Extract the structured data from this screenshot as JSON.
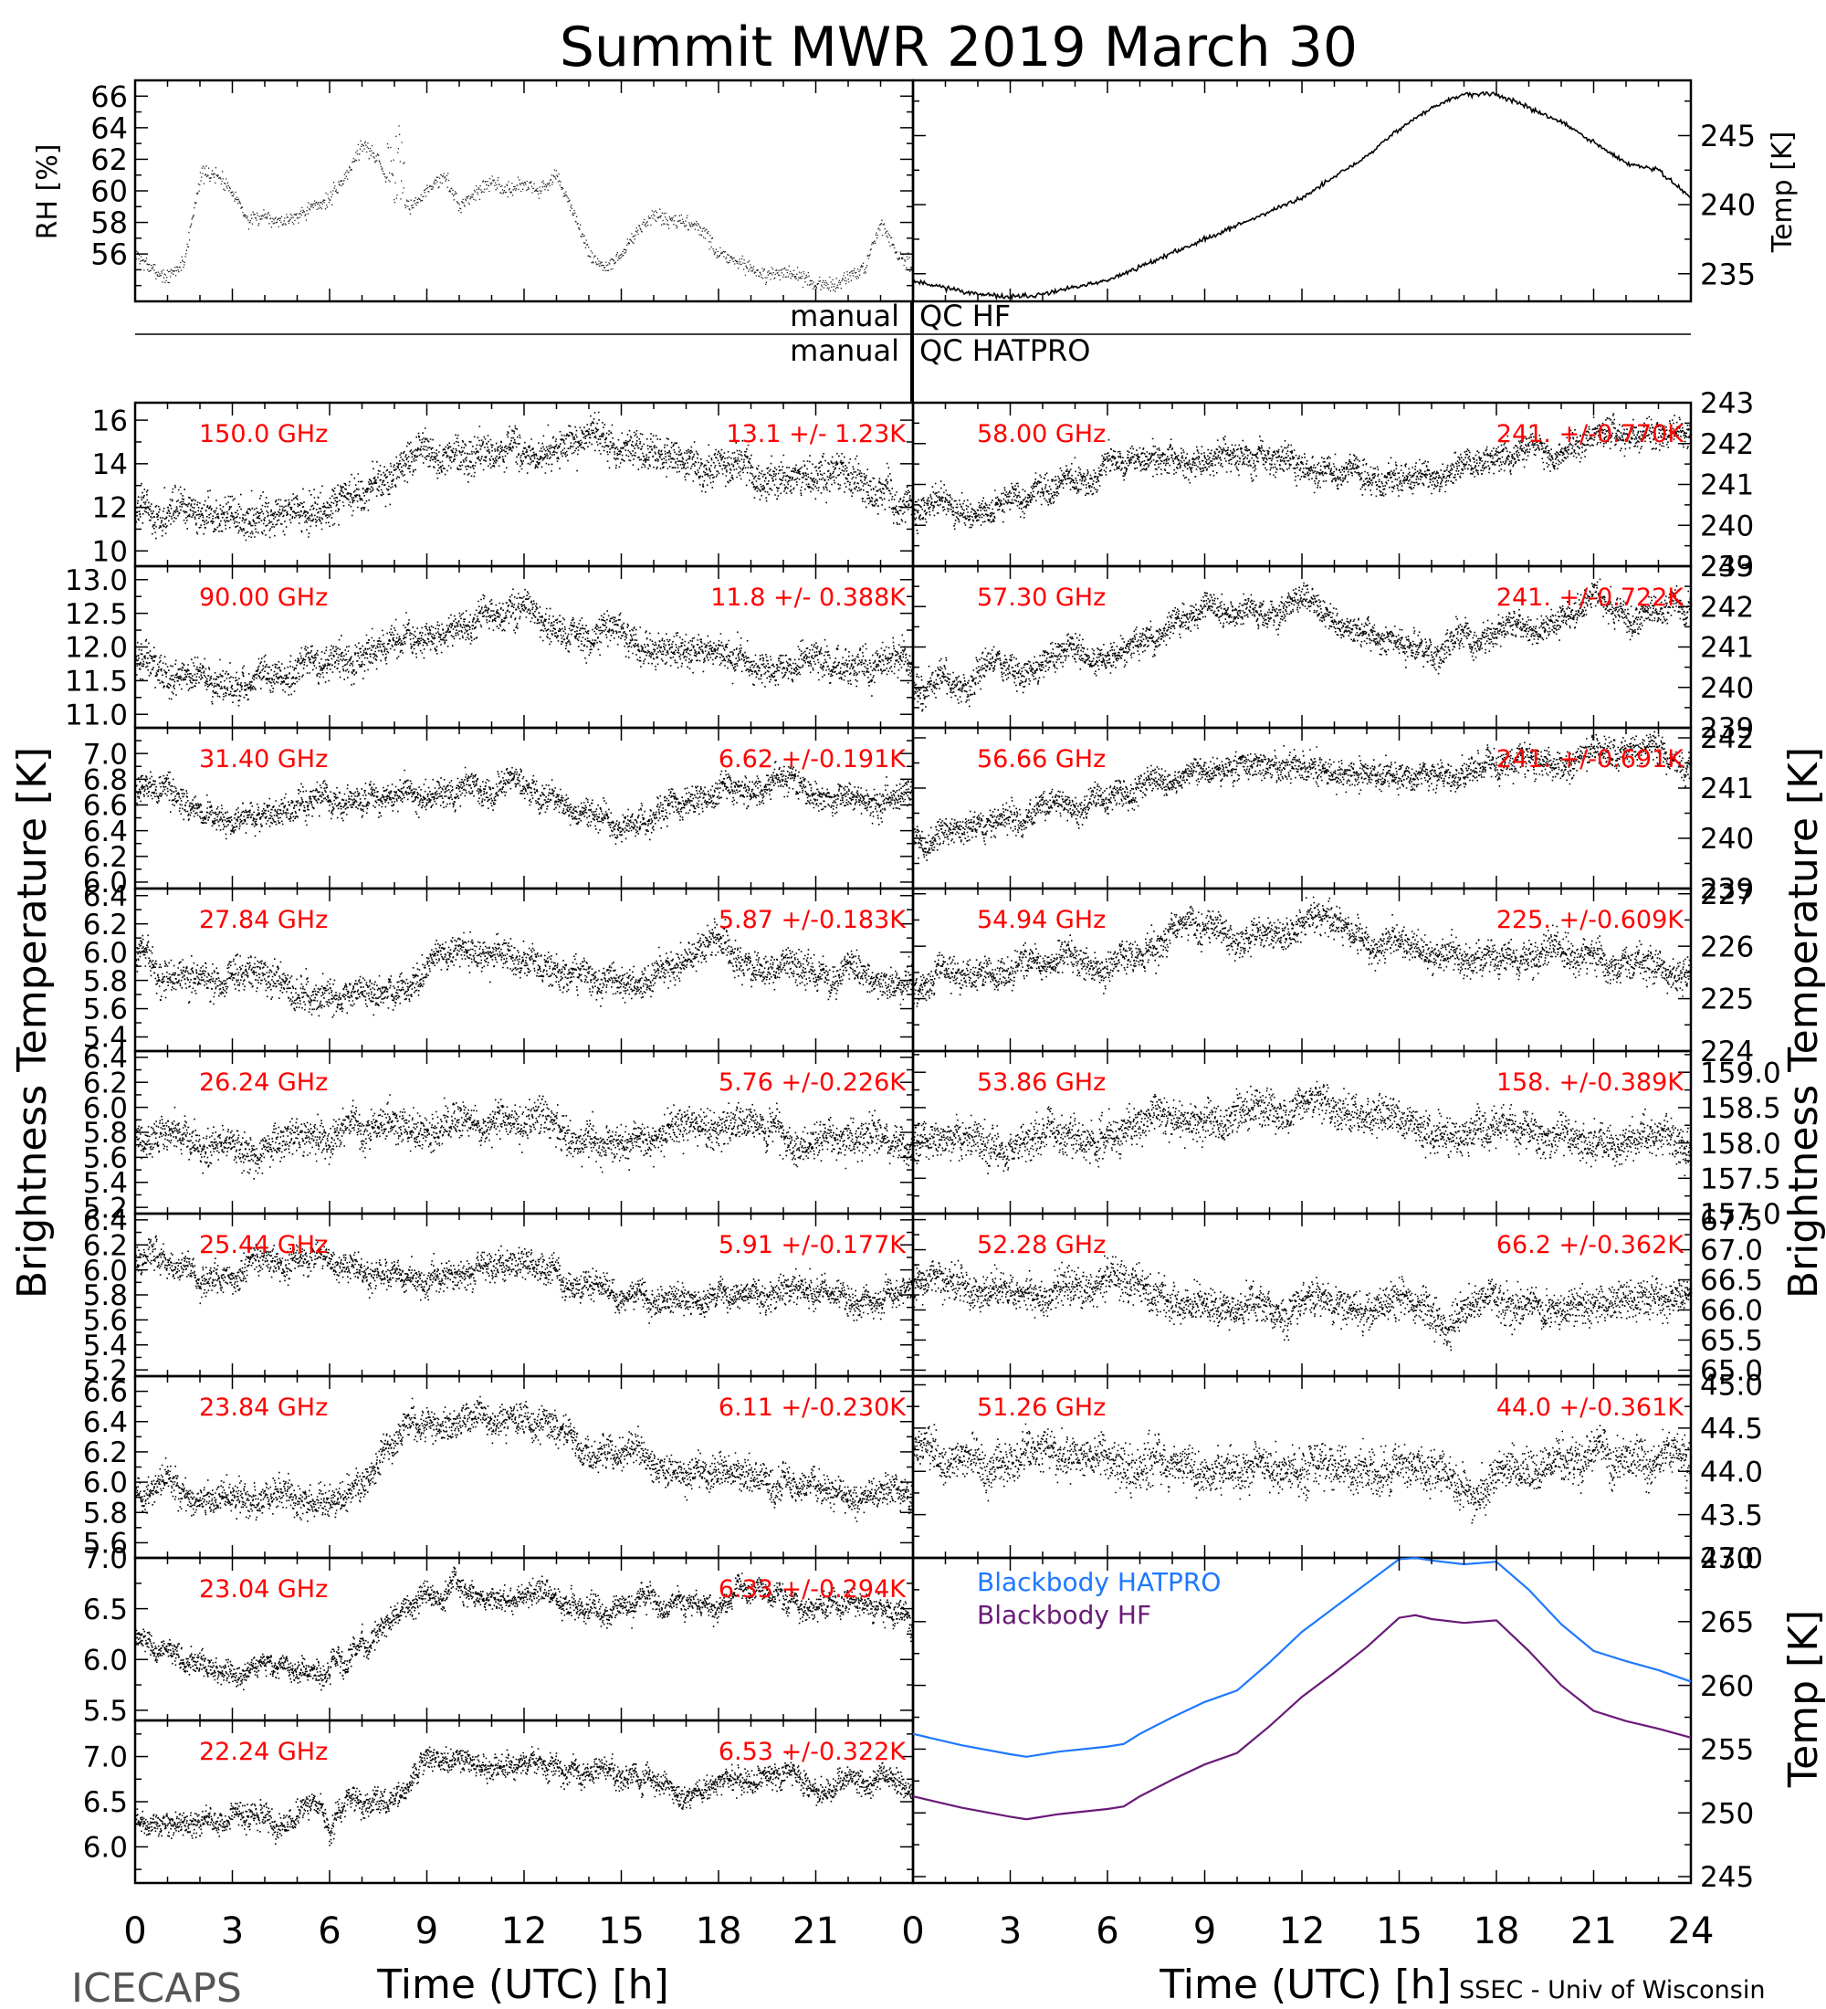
{
  "header": {
    "title": "Summit MWR 2019 March 30",
    "xlabel_left": "Time (UTC) [h]",
    "xlabel_right": "Time (UTC) [h]",
    "credit_left": "ICECAPS",
    "credit_right": "SSEC - Univ of Wisconsin",
    "ylabel_left": "Brightness Temperature [K]",
    "ylabel_right": "Brightness Temperature [K]",
    "ylabel_bb": "Temp [K]",
    "manual_label_1": "manual",
    "qc_label_1": "QC HF",
    "manual_label_2": "manual",
    "qc_label_2": "QC HATPRO"
  },
  "colors": {
    "trace": "#000000",
    "annotation": "#ff0000",
    "bb_hatpro": "#1e78ff",
    "bb_hf": "#6a1a78",
    "background": "#ffffff"
  },
  "chart_data": [
    {
      "type": "scatter",
      "id": "rh",
      "ylabel": "RH [%]",
      "ylim": [
        53,
        67
      ],
      "yticks": [
        56,
        58,
        60,
        62,
        64,
        66
      ],
      "xlim": [
        0,
        24
      ],
      "x": [
        0,
        0.5,
        1,
        1.5,
        2,
        2.5,
        3,
        3.5,
        4,
        4.5,
        5,
        5.5,
        6,
        6.5,
        7,
        7.5,
        8,
        8.5,
        9,
        9.5,
        10,
        10.5,
        11,
        11.5,
        12,
        12.5,
        13,
        13.5,
        14,
        14.5,
        15,
        15.5,
        16,
        16.5,
        17,
        17.5,
        18,
        18.5,
        19,
        19.5,
        20,
        20.5,
        21,
        21.5,
        22,
        22.5,
        23,
        23.5,
        24
      ],
      "values": [
        56,
        55,
        54.5,
        55.5,
        61,
        61,
        60,
        58,
        58.5,
        58,
        58.5,
        59,
        59.5,
        61,
        63,
        62,
        59,
        59,
        60,
        61,
        59,
        60,
        60.5,
        60,
        60.5,
        60,
        61,
        58.5,
        56,
        55,
        56,
        57.5,
        58.5,
        58,
        58,
        57.5,
        56,
        55.5,
        55,
        54.5,
        55,
        54.5,
        54,
        54,
        54.5,
        55,
        58,
        56,
        55
      ]
    },
    {
      "type": "line",
      "id": "air-temp",
      "ylabel": "Temp [K]",
      "ylim": [
        233,
        249
      ],
      "yticks": [
        235,
        240,
        245
      ],
      "xlim": [
        0,
        24
      ],
      "x": [
        0,
        1,
        2,
        3,
        4,
        5,
        6,
        7,
        8,
        9,
        10,
        11,
        12,
        13,
        14,
        15,
        16,
        17,
        18,
        19,
        20,
        21,
        22,
        23,
        24
      ],
      "values": [
        234.5,
        234,
        233.5,
        233.3,
        233.5,
        234,
        234.5,
        235.5,
        236.5,
        237.5,
        238.5,
        239.5,
        240.5,
        242,
        243.5,
        245.5,
        247,
        248,
        248,
        247,
        246,
        244.5,
        243,
        242.5,
        240.5
      ]
    },
    {
      "type": "scatter",
      "id": "ch-150",
      "freq_label": "150.0 GHz",
      "stat_label": "13.1 +/- 1.23K",
      "ylim": [
        9.3,
        16.8
      ],
      "yticks": [
        10,
        12,
        14,
        16
      ],
      "xlim": [
        0,
        24
      ],
      "x": [
        0,
        3,
        6,
        9,
        12,
        15,
        18,
        21,
        24
      ],
      "values": [
        12,
        11.5,
        12,
        14.5,
        15,
        14.5,
        13.5,
        13,
        12.5
      ]
    },
    {
      "type": "scatter",
      "id": "ch-90",
      "freq_label": "90.00 GHz",
      "stat_label": "11.8 +/- 0.388K",
      "ylim": [
        10.8,
        13.2
      ],
      "yticks": [
        11.0,
        11.5,
        12.0,
        12.5,
        13.0
      ],
      "xlim": [
        0,
        24
      ],
      "x": [
        0,
        3,
        6,
        9,
        12,
        15,
        18,
        21,
        24
      ],
      "values": [
        11.8,
        11.5,
        11.7,
        12.2,
        12.3,
        12.1,
        11.8,
        11.7,
        11.8
      ]
    },
    {
      "type": "scatter",
      "id": "ch-31",
      "freq_label": "31.40 GHz",
      "stat_label": "6.62 +/-0.191K",
      "ylim": [
        5.95,
        7.2
      ],
      "yticks": [
        6.0,
        6.2,
        6.4,
        6.6,
        6.8,
        7.0
      ],
      "xlim": [
        0,
        24
      ],
      "x": [
        0,
        3,
        6,
        9,
        12,
        15,
        18,
        21,
        24
      ],
      "values": [
        6.7,
        6.5,
        6.55,
        6.65,
        6.7,
        6.45,
        6.7,
        6.65,
        6.7
      ]
    },
    {
      "type": "scatter",
      "id": "ch-27",
      "freq_label": "27.84 GHz",
      "stat_label": "5.87 +/-0.183K",
      "ylim": [
        5.3,
        6.45
      ],
      "yticks": [
        5.4,
        5.6,
        5.8,
        6.0,
        6.2,
        6.4
      ],
      "xlim": [
        0,
        24
      ],
      "x": [
        0,
        3,
        6,
        9,
        12,
        15,
        18,
        21,
        24
      ],
      "values": [
        5.95,
        5.8,
        5.75,
        5.9,
        6.0,
        5.75,
        5.95,
        5.85,
        5.85
      ]
    },
    {
      "type": "scatter",
      "id": "ch-26",
      "freq_label": "26.24 GHz",
      "stat_label": "5.76 +/-0.226K",
      "ylim": [
        5.15,
        6.45
      ],
      "yticks": [
        5.2,
        5.4,
        5.6,
        5.8,
        6.0,
        6.2,
        6.4
      ],
      "xlim": [
        0,
        24
      ],
      "x": [
        0,
        3,
        6,
        9,
        12,
        15,
        18,
        21,
        24
      ],
      "values": [
        5.8,
        5.7,
        5.75,
        5.85,
        5.9,
        5.7,
        5.85,
        5.75,
        5.75
      ]
    },
    {
      "type": "scatter",
      "id": "ch-25",
      "freq_label": "25.44 GHz",
      "stat_label": "5.91 +/-0.177K",
      "ylim": [
        5.15,
        6.45
      ],
      "yticks": [
        5.2,
        5.4,
        5.6,
        5.8,
        6.0,
        6.2,
        6.4
      ],
      "xlim": [
        0,
        24
      ],
      "x": [
        0,
        3,
        6,
        9,
        12,
        15,
        18,
        21,
        24
      ],
      "values": [
        6.1,
        5.95,
        6.1,
        5.9,
        6.0,
        5.8,
        5.8,
        5.85,
        5.8
      ]
    },
    {
      "type": "scatter",
      "id": "ch-23-84",
      "freq_label": "23.84 GHz",
      "stat_label": "6.11 +/-0.230K",
      "ylim": [
        5.5,
        6.7
      ],
      "yticks": [
        5.6,
        5.8,
        6.0,
        6.2,
        6.4,
        6.6
      ],
      "xlim": [
        0,
        24
      ],
      "x": [
        0,
        3,
        6,
        9,
        12,
        15,
        18,
        21,
        24
      ],
      "values": [
        6.0,
        5.9,
        5.9,
        6.35,
        6.45,
        6.15,
        6.1,
        6.0,
        5.9
      ]
    },
    {
      "type": "scatter",
      "id": "ch-23-04",
      "freq_label": "23.04 GHz",
      "stat_label": "6.33 +/-0.294K",
      "ylim": [
        5.4,
        7.0
      ],
      "yticks": [
        5.5,
        6.0,
        6.5,
        7.0
      ],
      "xlim": [
        0,
        24
      ],
      "x": [
        0,
        3,
        6,
        9,
        12,
        15,
        18,
        21,
        24
      ],
      "values": [
        6.2,
        5.9,
        6.0,
        6.6,
        6.6,
        6.45,
        6.55,
        6.55,
        6.3
      ]
    },
    {
      "type": "scatter",
      "id": "ch-22",
      "freq_label": "22.24 GHz",
      "stat_label": "6.53 +/-0.322K",
      "ylim": [
        5.6,
        7.4
      ],
      "yticks": [
        6.0,
        6.5,
        7.0
      ],
      "xlim": [
        0,
        24
      ],
      "x": [
        0,
        3,
        6,
        9,
        12,
        15,
        18,
        21,
        24
      ],
      "values": [
        6.3,
        6.3,
        6.4,
        6.9,
        6.9,
        6.75,
        6.75,
        6.7,
        6.6
      ]
    },
    {
      "type": "scatter",
      "id": "ch-58",
      "freq_label": "58.00 GHz",
      "stat_label": "241. +/-0.770K",
      "ylim": [
        239,
        243
      ],
      "yticks": [
        239,
        240,
        241,
        242,
        243
      ],
      "xlim": [
        0,
        24
      ],
      "x": [
        0,
        3,
        6,
        9,
        12,
        15,
        18,
        21,
        24
      ],
      "values": [
        240.2,
        240.6,
        241.2,
        241.8,
        241.7,
        241.2,
        241.4,
        242,
        242
      ]
    },
    {
      "type": "scatter",
      "id": "ch-57",
      "freq_label": "57.30 GHz",
      "stat_label": "241. +/-0.722K",
      "ylim": [
        239,
        243
      ],
      "yticks": [
        239,
        240,
        241,
        242,
        243
      ],
      "xlim": [
        0,
        24
      ],
      "x": [
        0,
        3,
        6,
        9,
        12,
        15,
        18,
        21,
        24
      ],
      "values": [
        240,
        240.5,
        241,
        241.7,
        242,
        241.3,
        241.3,
        241.9,
        242.1
      ]
    },
    {
      "type": "scatter",
      "id": "ch-56",
      "freq_label": "56.66 GHz",
      "stat_label": "241. +/-0.691K",
      "ylim": [
        239,
        242.2
      ],
      "yticks": [
        239,
        240,
        241,
        242
      ],
      "xlim": [
        0,
        24
      ],
      "x": [
        0,
        3,
        6,
        9,
        12,
        15,
        18,
        21,
        24
      ],
      "values": [
        240,
        240.4,
        240.9,
        241.4,
        241.5,
        241.3,
        241.3,
        241.6,
        241.6
      ]
    },
    {
      "type": "scatter",
      "id": "ch-54",
      "freq_label": "54.94 GHz",
      "stat_label": "225. +/-0.609K",
      "ylim": [
        224,
        227.1
      ],
      "yticks": [
        224,
        225,
        226,
        227
      ],
      "xlim": [
        0,
        24
      ],
      "x": [
        0,
        3,
        6,
        9,
        12,
        15,
        18,
        21,
        24
      ],
      "values": [
        225.2,
        225.5,
        225.9,
        226.3,
        226.4,
        226.1,
        225.9,
        225.9,
        225.6
      ]
    },
    {
      "type": "scatter",
      "id": "ch-53",
      "freq_label": "53.86 GHz",
      "stat_label": "158. +/-0.389K",
      "ylim": [
        157.0,
        159.3
      ],
      "yticks": [
        157.0,
        157.5,
        158.0,
        158.5,
        159.0
      ],
      "xlim": [
        0,
        24
      ],
      "x": [
        0,
        3,
        6,
        9,
        12,
        15,
        18,
        21,
        24
      ],
      "values": [
        158,
        157.95,
        158.1,
        158.4,
        158.4,
        158.1,
        158.2,
        158.05,
        157.9
      ]
    },
    {
      "type": "scatter",
      "id": "ch-52",
      "freq_label": "52.28 GHz",
      "stat_label": "66.2 +/-0.362K",
      "ylim": [
        64.9,
        67.6
      ],
      "yticks": [
        65.0,
        65.5,
        66.0,
        66.5,
        67.0,
        67.5
      ],
      "xlim": [
        0,
        24
      ],
      "x": [
        0,
        3,
        6,
        9,
        12,
        15,
        18,
        21,
        24
      ],
      "values": [
        66.3,
        66.2,
        66.3,
        66.2,
        66.1,
        66.0,
        66.1,
        66.1,
        66.0
      ]
    },
    {
      "type": "scatter",
      "id": "ch-51",
      "freq_label": "51.26 GHz",
      "stat_label": "44.0 +/-0.361K",
      "ylim": [
        43.0,
        45.1
      ],
      "yticks": [
        43.0,
        43.5,
        44.0,
        44.5,
        45.0
      ],
      "xlim": [
        0,
        24
      ],
      "x": [
        0,
        3,
        6,
        9,
        12,
        15,
        18,
        21,
        24
      ],
      "values": [
        44.2,
        44.1,
        44.2,
        44.1,
        44.0,
        43.9,
        44.0,
        44.1,
        44.2
      ]
    },
    {
      "type": "line",
      "id": "blackbody",
      "ylabel": "Temp [K]",
      "ylim": [
        244.5,
        270
      ],
      "yticks": [
        245,
        250,
        255,
        260,
        265,
        270
      ],
      "xlim": [
        0,
        24
      ],
      "series": [
        {
          "name": "Blackbody HATPRO",
          "x": [
            0,
            1.5,
            3,
            3.5,
            4.5,
            6,
            6.5,
            7,
            8,
            9,
            10,
            11,
            12,
            13,
            14,
            15,
            15.5,
            16,
            17,
            18,
            19,
            20,
            21,
            22,
            23,
            24
          ],
          "values": [
            256.2,
            255.3,
            254.6,
            254.4,
            254.8,
            255.2,
            255.4,
            256.2,
            257.5,
            258.7,
            259.6,
            261.8,
            264.2,
            266.1,
            268,
            269.9,
            270,
            269.8,
            269.5,
            269.7,
            267.5,
            264.8,
            262.7,
            261.9,
            261.2,
            260.3
          ]
        },
        {
          "name": "Blackbody HF",
          "x": [
            0,
            1.5,
            3,
            3.5,
            4.5,
            6,
            6.5,
            7,
            8,
            9,
            10,
            11,
            12,
            13,
            14,
            15,
            15.5,
            16,
            17,
            18,
            19,
            20,
            21,
            22,
            23,
            24
          ],
          "values": [
            251.3,
            250.4,
            249.7,
            249.5,
            249.9,
            250.3,
            250.5,
            251.3,
            252.6,
            253.8,
            254.7,
            256.8,
            259.1,
            261,
            263,
            265.3,
            265.5,
            265.2,
            264.9,
            265.1,
            262.7,
            260,
            258,
            257.2,
            256.6,
            255.9
          ]
        }
      ]
    }
  ],
  "xaxis": {
    "ticks_left": [
      "0",
      "3",
      "6",
      "9",
      "12",
      "15",
      "18",
      "21"
    ],
    "ticks_right": [
      "0",
      "3",
      "6",
      "9",
      "12",
      "15",
      "18",
      "21",
      "24"
    ]
  }
}
